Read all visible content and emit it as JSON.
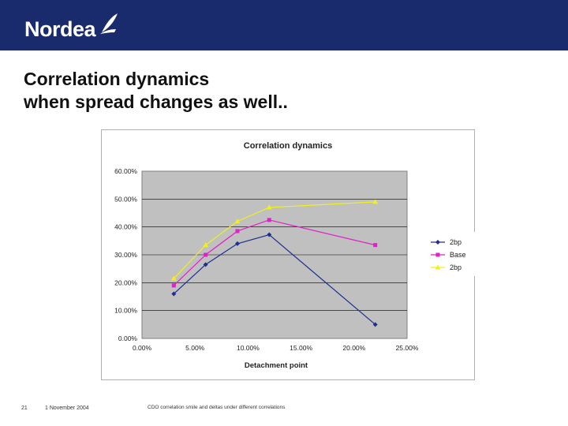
{
  "header": {
    "logo_text": "Nordea",
    "brand_color": "#1a2b6d"
  },
  "slide": {
    "title_line1": "Correlation dynamics",
    "title_line2": "when spread changes as well.."
  },
  "footer": {
    "page_number": "21",
    "date": "1 November 2004",
    "note": "CDO correlation smile and deltas under different correlations"
  },
  "chart_data": {
    "type": "line",
    "title": "Correlation dynamics",
    "xlabel": "Detachment point",
    "ylabel": "",
    "xlim": [
      0,
      0.25
    ],
    "ylim": [
      0,
      0.6
    ],
    "x_ticks": [
      "0.00%",
      "5.00%",
      "10.00%",
      "15.00%",
      "20.00%",
      "25.00%"
    ],
    "y_ticks": [
      "0.00%",
      "10.00%",
      "20.00%",
      "30.00%",
      "40.00%",
      "50.00%",
      "60.00%"
    ],
    "grid": "horizontal",
    "plot_background": "#c0c0c0",
    "legend_position": "right",
    "series": [
      {
        "name": "2bp",
        "color": "#1f2f8f",
        "marker": "diamond",
        "x": [
          0.03,
          0.06,
          0.09,
          0.12,
          0.22
        ],
        "y": [
          0.16,
          0.265,
          0.34,
          0.372,
          0.05
        ]
      },
      {
        "name": "Base",
        "color": "#e020c8",
        "marker": "square",
        "x": [
          0.03,
          0.06,
          0.09,
          0.12,
          0.22
        ],
        "y": [
          0.19,
          0.3,
          0.385,
          0.425,
          0.335
        ]
      },
      {
        "name": "2bp",
        "color": "#f0f020",
        "marker": "triangle",
        "x": [
          0.03,
          0.06,
          0.09,
          0.12,
          0.22
        ],
        "y": [
          0.215,
          0.335,
          0.42,
          0.47,
          0.49
        ]
      }
    ]
  }
}
